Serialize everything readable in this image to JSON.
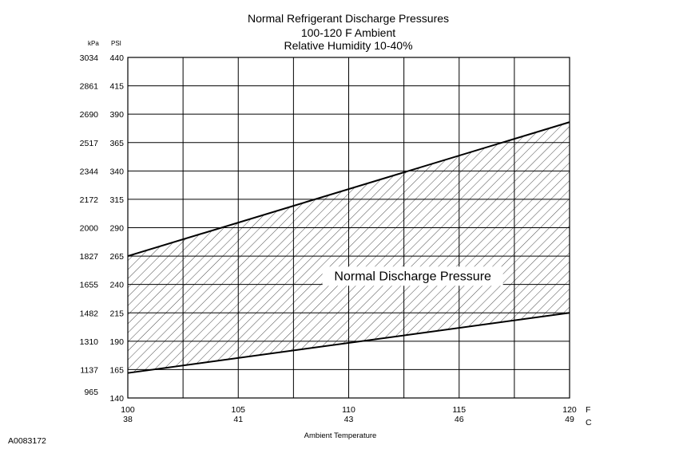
{
  "chart_data": {
    "type": "area",
    "title": "Normal  Refrigerant  Discharge  Pressures",
    "subtitle_lines": [
      "100-120 F Ambient",
      "Relative Humidity 10-40%"
    ],
    "xlabel": "Ambient Temperature",
    "x_unit_primary": "F",
    "x_unit_secondary": "C",
    "y_unit_left": "kPa",
    "y_unit_right": "PSI",
    "xlim": [
      100,
      120
    ],
    "ylim": [
      140,
      440
    ],
    "x_gridlines": [
      100,
      102.5,
      105,
      107.5,
      110,
      112.5,
      115,
      117.5,
      120
    ],
    "x_ticks": [
      {
        "f": "100",
        "c": "38"
      },
      {
        "f": "105",
        "c": "41"
      },
      {
        "f": "110",
        "c": "43"
      },
      {
        "f": "115",
        "c": "46"
      },
      {
        "f": "120",
        "c": "49"
      }
    ],
    "y_ticks": [
      {
        "psi": "440",
        "kpa": "3034"
      },
      {
        "psi": "415",
        "kpa": "2861"
      },
      {
        "psi": "390",
        "kpa": "2690"
      },
      {
        "psi": "365",
        "kpa": "2517"
      },
      {
        "psi": "340",
        "kpa": "2344"
      },
      {
        "psi": "315",
        "kpa": "2172"
      },
      {
        "psi": "290",
        "kpa": "2000"
      },
      {
        "psi": "265",
        "kpa": "1827"
      },
      {
        "psi": "240",
        "kpa": "1655"
      },
      {
        "psi": "215",
        "kpa": "1482"
      },
      {
        "psi": "190",
        "kpa": "1310"
      },
      {
        "psi": "165",
        "kpa": "1137"
      },
      {
        "psi": "140",
        "kpa": "965"
      }
    ],
    "series": [
      {
        "x": [
          100,
          120
        ],
        "values": [
          265,
          383
        ]
      },
      {
        "x": [
          100,
          120
        ],
        "values": [
          162,
          215
        ]
      }
    ],
    "band_label": "Normal Discharge Pressure",
    "grid": true,
    "legend": "none"
  },
  "figure_id": "A0083172"
}
